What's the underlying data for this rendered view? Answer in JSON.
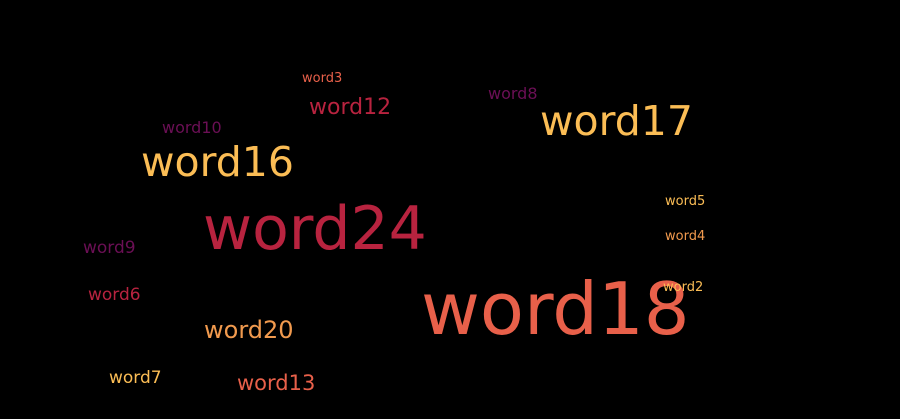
{
  "words": [
    {
      "text": "word3",
      "color": "#e8604a"
    },
    {
      "text": "word12",
      "color": "#b8233f"
    },
    {
      "text": "word8",
      "color": "#6b0f55"
    },
    {
      "text": "word17",
      "color": "#fbbd55"
    },
    {
      "text": "word10",
      "color": "#6b0f55"
    },
    {
      "text": "word16",
      "color": "#fbbd55"
    },
    {
      "text": "word5",
      "color": "#fbbd55"
    },
    {
      "text": "word24",
      "color": "#b8233f"
    },
    {
      "text": "word4",
      "color": "#f19a4e"
    },
    {
      "text": "word9",
      "color": "#6b0f55"
    },
    {
      "text": "word2",
      "color": "#fbbd55"
    },
    {
      "text": "word18",
      "color": "#e8604a"
    },
    {
      "text": "word6",
      "color": "#b8233f"
    },
    {
      "text": "word20",
      "color": "#f19a4e"
    },
    {
      "text": "word7",
      "color": "#fbbd55"
    },
    {
      "text": "word13",
      "color": "#e8604a"
    }
  ]
}
